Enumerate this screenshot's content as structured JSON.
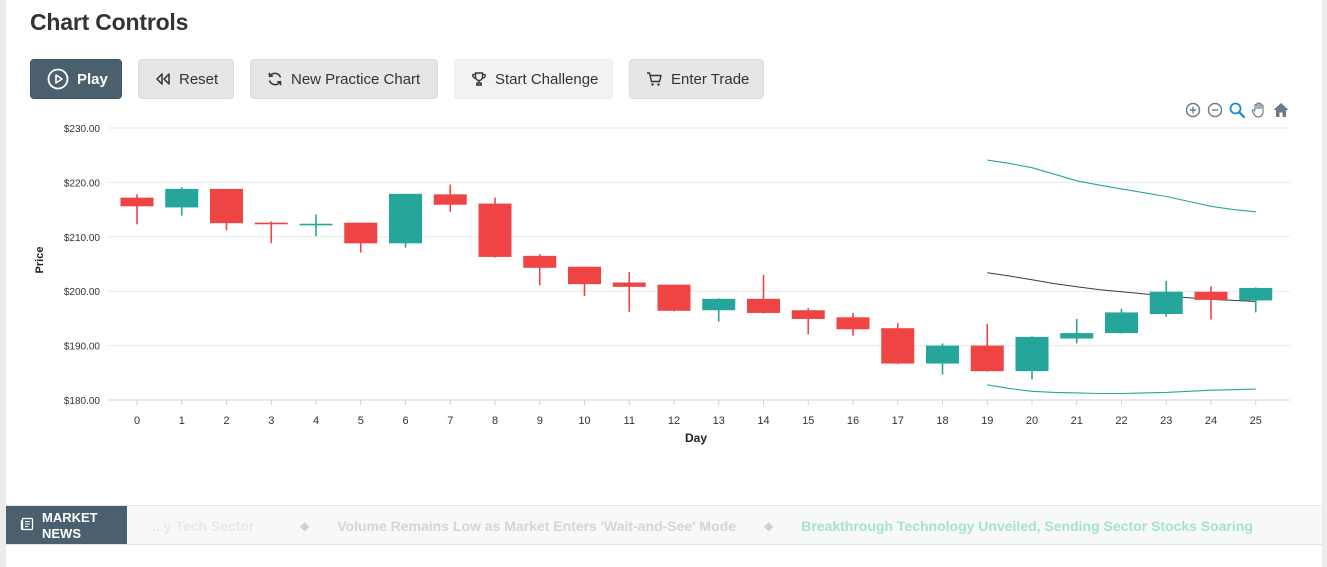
{
  "header": {
    "title": "Chart Controls"
  },
  "controls": {
    "play_label": "Play",
    "reset_label": "Reset",
    "new_chart_label": "New Practice Chart",
    "challenge_label": "Start Challenge",
    "trade_label": "Enter Trade"
  },
  "toolbar": {
    "icons": [
      "zoom-in-icon",
      "zoom-out-icon",
      "zoom-select-icon",
      "pan-hand-icon",
      "home-reset-icon"
    ]
  },
  "colors": {
    "up": "#26a69a",
    "down": "#ef4444",
    "band": "#26a69a",
    "middle_line": "#2c3e50",
    "accent": "#4a606e"
  },
  "chart_data": {
    "type": "candlestick",
    "xlabel": "Day",
    "ylabel": "Price",
    "x_ticks": [
      "0",
      "1",
      "2",
      "3",
      "4",
      "5",
      "6",
      "7",
      "8",
      "9",
      "10",
      "11",
      "12",
      "13",
      "14",
      "15",
      "16",
      "17",
      "18",
      "19",
      "20",
      "21",
      "22",
      "23",
      "24",
      "25"
    ],
    "y_ticks": [
      "$180.00",
      "$190.00",
      "$200.00",
      "$210.00",
      "$220.00",
      "$230.00"
    ],
    "ylim": [
      180,
      230
    ],
    "grid": true,
    "candles": [
      {
        "x": 0,
        "open": 217.2,
        "high": 217.8,
        "low": 212.3,
        "close": 215.6
      },
      {
        "x": 1,
        "open": 215.4,
        "high": 219.1,
        "low": 213.9,
        "close": 218.8
      },
      {
        "x": 2,
        "open": 218.8,
        "high": 218.8,
        "low": 211.2,
        "close": 212.5
      },
      {
        "x": 3,
        "open": 212.6,
        "high": 212.8,
        "low": 208.8,
        "close": 212.3
      },
      {
        "x": 4,
        "open": 212.2,
        "high": 214.1,
        "low": 210.1,
        "close": 212.4
      },
      {
        "x": 5,
        "open": 212.6,
        "high": 212.6,
        "low": 207.1,
        "close": 208.8
      },
      {
        "x": 6,
        "open": 208.8,
        "high": 217.9,
        "low": 208.0,
        "close": 217.9
      },
      {
        "x": 7,
        "open": 217.8,
        "high": 219.6,
        "low": 214.6,
        "close": 215.9
      },
      {
        "x": 8,
        "open": 216.1,
        "high": 217.2,
        "low": 206.2,
        "close": 206.3
      },
      {
        "x": 9,
        "open": 206.5,
        "high": 206.8,
        "low": 201.1,
        "close": 204.3
      },
      {
        "x": 10,
        "open": 204.5,
        "high": 204.5,
        "low": 199.1,
        "close": 201.3
      },
      {
        "x": 11,
        "open": 201.6,
        "high": 203.5,
        "low": 196.2,
        "close": 200.8
      },
      {
        "x": 12,
        "open": 201.2,
        "high": 201.2,
        "low": 196.3,
        "close": 196.4
      },
      {
        "x": 13,
        "open": 196.5,
        "high": 198.7,
        "low": 194.4,
        "close": 198.6
      },
      {
        "x": 14,
        "open": 198.6,
        "high": 203.0,
        "low": 195.9,
        "close": 196.0
      },
      {
        "x": 15,
        "open": 196.5,
        "high": 196.9,
        "low": 192.1,
        "close": 194.9
      },
      {
        "x": 16,
        "open": 195.2,
        "high": 196.0,
        "low": 191.8,
        "close": 193.0
      },
      {
        "x": 17,
        "open": 193.2,
        "high": 194.1,
        "low": 186.6,
        "close": 186.7
      },
      {
        "x": 18,
        "open": 186.7,
        "high": 190.4,
        "low": 184.7,
        "close": 190.0
      },
      {
        "x": 19,
        "open": 190.0,
        "high": 194.0,
        "low": 185.2,
        "close": 185.3
      },
      {
        "x": 20,
        "open": 185.3,
        "high": 191.7,
        "low": 183.8,
        "close": 191.6
      },
      {
        "x": 21,
        "open": 191.3,
        "high": 194.9,
        "low": 190.4,
        "close": 192.3
      },
      {
        "x": 22,
        "open": 192.3,
        "high": 196.8,
        "low": 192.2,
        "close": 196.1
      },
      {
        "x": 23,
        "open": 195.8,
        "high": 201.9,
        "low": 195.3,
        "close": 199.9
      },
      {
        "x": 24,
        "open": 199.9,
        "high": 200.9,
        "low": 194.8,
        "close": 198.4
      },
      {
        "x": 25,
        "open": 198.3,
        "high": 200.7,
        "low": 196.1,
        "close": 200.6
      }
    ],
    "bands": {
      "x": [
        19,
        19.5,
        20,
        20.5,
        21,
        21.5,
        22,
        22.5,
        23,
        23.5,
        24,
        24.5,
        25
      ],
      "upper": [
        224.1,
        223.5,
        222.7,
        221.5,
        220.3,
        219.5,
        218.8,
        218.1,
        217.4,
        216.5,
        215.6,
        215.0,
        214.6
      ],
      "middle": [
        203.4,
        202.8,
        202.1,
        201.4,
        200.8,
        200.3,
        199.9,
        199.5,
        199.1,
        198.8,
        198.5,
        198.3,
        198.1
      ],
      "lower": [
        182.8,
        182.1,
        181.6,
        181.4,
        181.3,
        181.2,
        181.2,
        181.3,
        181.4,
        181.6,
        181.8,
        181.9,
        182.0
      ]
    }
  },
  "news": {
    "label_line1": "MARKET",
    "label_line2": "NEWS",
    "items": [
      "...y Tech Sector",
      "Volume Remains Low as Market Enters 'Wait-and-See' Mode",
      "Breakthrough Technology Unveiled, Sending Sector Stocks Soaring"
    ]
  }
}
